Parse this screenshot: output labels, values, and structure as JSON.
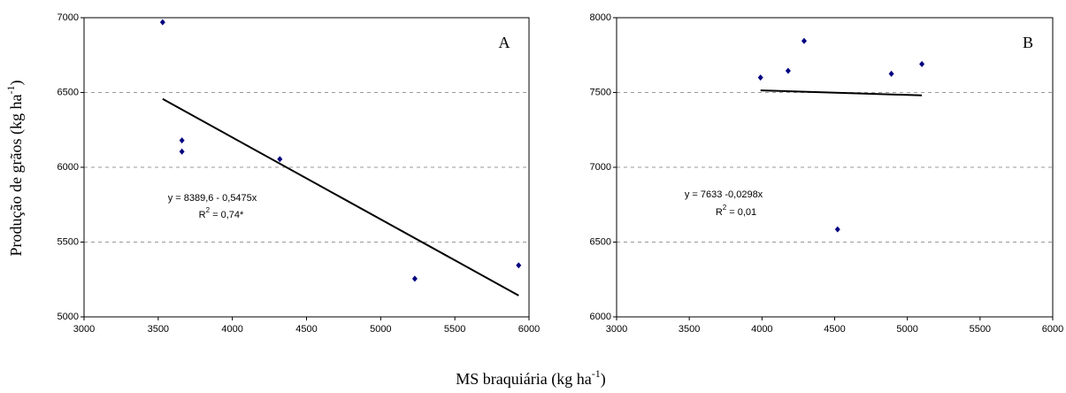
{
  "axis_labels": {
    "y": {
      "text": "Produção de grãos (kg ha",
      "sup": "-1",
      "end": ")"
    },
    "x": {
      "text": "MS braquiária (kg ha",
      "sup": "-1",
      "end": ")"
    }
  },
  "chart_data": [
    {
      "type": "scatter",
      "panel": "A",
      "color": "#000080",
      "x": [
        3530,
        3660,
        3660,
        4320,
        5230,
        5930
      ],
      "values": [
        6970,
        6180,
        6105,
        6055,
        5255,
        5345
      ],
      "trendline": {
        "x": [
          3530,
          5930
        ],
        "y": [
          6457,
          5143
        ]
      },
      "equation": "y = 8389,6 - 0,5475x",
      "r2": {
        "pre": "R",
        "sup": "2",
        "post": " = 0,74*"
      },
      "xlim": [
        3000,
        6000
      ],
      "xticks": [
        3000,
        3500,
        4000,
        4500,
        5000,
        5500,
        6000
      ],
      "ylim": [
        5000,
        7000
      ],
      "yticks": [
        5000,
        5500,
        6000,
        6500,
        7000
      ],
      "grid": true
    },
    {
      "type": "scatter",
      "panel": "B",
      "color": "#000080",
      "x": [
        3990,
        4180,
        4290,
        4520,
        4890,
        5100
      ],
      "values": [
        7600,
        7645,
        7845,
        6585,
        7625,
        7690
      ],
      "trendline": {
        "x": [
          3990,
          5100
        ],
        "y": [
          7514,
          7481
        ]
      },
      "equation": "y = 7633 -0,0298x",
      "r2": {
        "pre": "R",
        "sup": "2",
        "post": " = 0,01"
      },
      "xlim": [
        3000,
        6000
      ],
      "xticks": [
        3000,
        3500,
        4000,
        4500,
        5000,
        5500,
        6000
      ],
      "ylim": [
        6000,
        8000
      ],
      "yticks": [
        6000,
        6500,
        7000,
        7500,
        8000
      ],
      "grid": true
    }
  ]
}
